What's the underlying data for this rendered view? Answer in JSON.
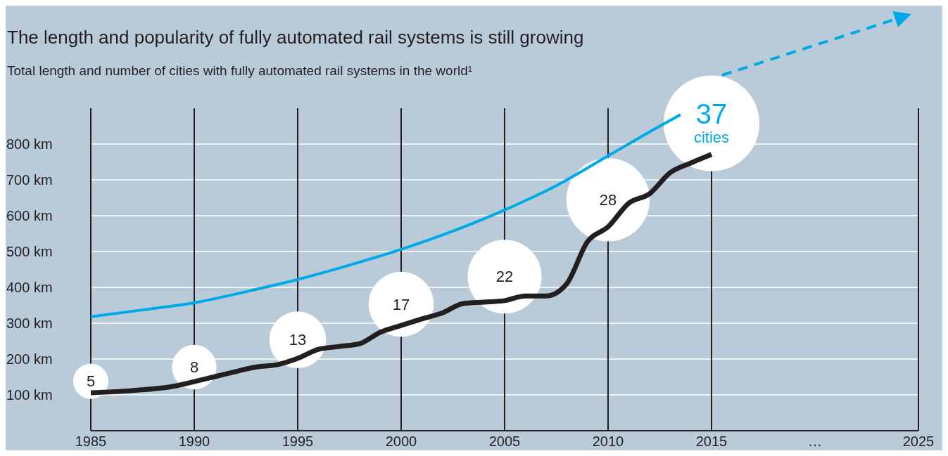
{
  "chart_data": {
    "type": "line",
    "title": "The length and popularity of fully automated rail systems is still growing",
    "subtitle": "Total length and number of cities with fully automated rail systems in the world¹",
    "xlim": [
      1985,
      2025
    ],
    "xticks": [
      1985,
      1990,
      1995,
      2000,
      2005,
      2010,
      2015,
      {
        "value": 2020,
        "label": "…"
      },
      2025
    ],
    "ylim": [
      0,
      900
    ],
    "yticks": [
      {
        "value": 100,
        "label": "100 km"
      },
      {
        "value": 200,
        "label": "200 km"
      },
      {
        "value": 300,
        "label": "300 km"
      },
      {
        "value": 400,
        "label": "400 km"
      },
      {
        "value": 500,
        "label": "500 km"
      },
      {
        "value": 600,
        "label": "600 km"
      },
      {
        "value": 700,
        "label": "700 km"
      },
      {
        "value": 800,
        "label": "800 km"
      }
    ],
    "grid": true,
    "series": [
      {
        "color": "#00a9e8",
        "x": [
          1985,
          1987.5,
          1990,
          1992.5,
          1995,
          1997.5,
          2000,
          2002.5,
          2005,
          2007.5,
          2010,
          2012.5,
          2013.5
        ],
        "values": [
          318,
          337,
          357,
          388,
          422,
          462,
          506,
          557,
          616,
          684,
          767,
          850,
          882
        ]
      },
      {
        "color": "#231f20",
        "x": [
          1985,
          1987,
          1989,
          1990,
          1991,
          1992,
          1993,
          1994,
          1995,
          1996,
          1997,
          1998,
          1999,
          2000,
          2001,
          2002,
          2003,
          2004,
          2005,
          2006,
          2007,
          2008,
          2009,
          2010,
          2011,
          2012,
          2013,
          2014,
          2015
        ],
        "values": [
          106,
          112,
          124,
          137,
          151,
          165,
          178,
          184,
          202,
          227,
          235,
          243,
          275,
          294,
          312,
          329,
          355,
          359,
          363,
          376,
          376,
          410,
          527,
          569,
          635,
          661,
          720,
          747,
          771
        ]
      }
    ],
    "annotations": [
      "5",
      "8",
      "13",
      "17",
      "22",
      "28",
      "37",
      "cities"
    ]
  }
}
